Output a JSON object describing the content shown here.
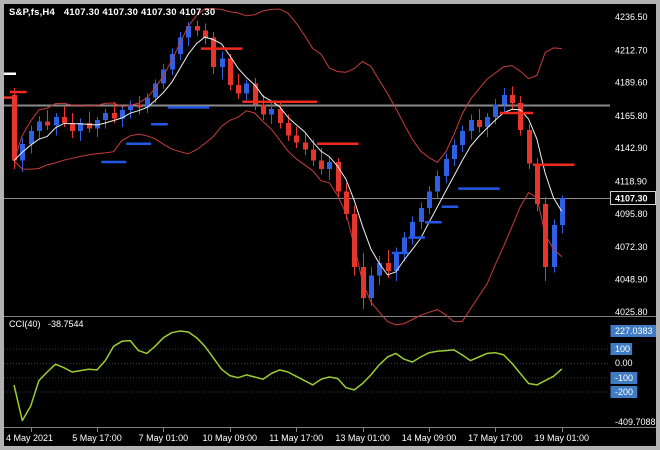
{
  "header": {
    "symbol_period": "S&P,fs,H4",
    "ohlc_text": "4107.30 4107.30 4107.30 4107.30"
  },
  "colors": {
    "frame": "#b2b2b2",
    "background": "#000000",
    "axis_text": "#ffffff",
    "separator": "#7f7f7f",
    "hline": "#8a8a8a",
    "cci_box": "#3f7cc4"
  },
  "chart_data": [
    {
      "type": "candlestick",
      "title": "S&P,fs,H4",
      "timeframe": "H4",
      "ylim": [
        4024.4,
        4244.4
      ],
      "y_ticks": [
        "4236.50",
        "4212.70",
        "4189.60",
        "4165.80",
        "4142.90",
        "4118.90",
        "4095.80",
        "4072.30",
        "4048.90",
        "4025.80"
      ],
      "y_tick_values": [
        4236.5,
        4212.7,
        4189.6,
        4165.8,
        4142.9,
        4118.9,
        4095.8,
        4072.3,
        4048.9,
        4025.8
      ],
      "current_price": 4107.3,
      "current_price_label": "4107.30",
      "x_labels": [
        "4 May 2021",
        "5 May 17:00",
        "7 May 01:00",
        "10 May 09:00",
        "11 May 17:00",
        "13 May 01:00",
        "14 May 09:00",
        "17 May 17:00",
        "19 May 01:00"
      ],
      "x_label_bars": [
        2,
        10,
        18,
        26,
        34,
        42,
        50,
        58,
        66
      ],
      "up_color": "#2f5fe3",
      "down_color": "#e8352b",
      "horizontal_lines": [
        {
          "price": 4174.0,
          "width": 2
        },
        {
          "price": 4107.3,
          "width": 1
        }
      ],
      "left_marks": [
        {
          "price": 4196,
          "color": "#ffffff"
        },
        {
          "price": 4179,
          "color": "#e8352b"
        }
      ],
      "trend_stops": [
        {
          "color": "#f02a1e",
          "segments": [
            [
              0,
              2,
              4183
            ]
          ]
        },
        {
          "color": "#2457e6",
          "segments": [
            [
              11,
              14,
              4133
            ],
            [
              14,
              17,
              4146
            ],
            [
              17,
              19,
              4160
            ],
            [
              19,
              24,
              4172
            ]
          ]
        },
        {
          "color": "#f02a1e",
          "segments": [
            [
              23,
              28,
              4214
            ],
            [
              28,
              37,
              4176
            ],
            [
              37,
              42,
              4146
            ]
          ]
        },
        {
          "color": "#2457e6",
          "segments": [
            [
              46,
              48,
              4068
            ],
            [
              48,
              50,
              4079
            ],
            [
              50,
              52,
              4090
            ],
            [
              52,
              54,
              4101
            ],
            [
              54,
              59,
              4114
            ]
          ]
        },
        {
          "color": "#f02a1e",
          "segments": [
            [
              59,
              63,
              4168
            ],
            [
              63,
              68,
              4131
            ]
          ]
        }
      ],
      "ma": {
        "fast_period": 5,
        "band_period": 13,
        "band_mult": 2.0,
        "mid_color": "#f0f0f0",
        "band_color": "#c83c3c"
      },
      "bars": [
        [
          4181,
          4186,
          4128,
          4134
        ],
        [
          4134,
          4150,
          4126,
          4146
        ],
        [
          4146,
          4159,
          4139,
          4155
        ],
        [
          4155,
          4166,
          4149,
          4162
        ],
        [
          4162,
          4170,
          4156,
          4159
        ],
        [
          4159,
          4168,
          4152,
          4165
        ],
        [
          4165,
          4173,
          4158,
          4161
        ],
        [
          4161,
          4168,
          4150,
          4155
        ],
        [
          4155,
          4164,
          4148,
          4161
        ],
        [
          4161,
          4169,
          4154,
          4157
        ],
        [
          4157,
          4165,
          4151,
          4163
        ],
        [
          4163,
          4171,
          4157,
          4168
        ],
        [
          4168,
          4176,
          4161,
          4164
        ],
        [
          4164,
          4173,
          4158,
          4170
        ],
        [
          4170,
          4177,
          4164,
          4174
        ],
        [
          4174,
          4180,
          4167,
          4172
        ],
        [
          4172,
          4182,
          4168,
          4179
        ],
        [
          4179,
          4192,
          4175,
          4189
        ],
        [
          4189,
          4203,
          4185,
          4199
        ],
        [
          4199,
          4214,
          4195,
          4210
        ],
        [
          4210,
          4226,
          4206,
          4222
        ],
        [
          4222,
          4233,
          4216,
          4230
        ],
        [
          4230,
          4234,
          4223,
          4227
        ],
        [
          4227,
          4232,
          4217,
          4222
        ],
        [
          4222,
          4226,
          4196,
          4201
        ],
        [
          4201,
          4212,
          4192,
          4207
        ],
        [
          4207,
          4210,
          4184,
          4188
        ],
        [
          4188,
          4196,
          4178,
          4182
        ],
        [
          4182,
          4192,
          4176,
          4189
        ],
        [
          4189,
          4193,
          4170,
          4174
        ],
        [
          4174,
          4181,
          4163,
          4167
        ],
        [
          4167,
          4175,
          4160,
          4171
        ],
        [
          4171,
          4176,
          4157,
          4161
        ],
        [
          4161,
          4167,
          4148,
          4152
        ],
        [
          4152,
          4158,
          4143,
          4147
        ],
        [
          4147,
          4154,
          4138,
          4142
        ],
        [
          4142,
          4149,
          4130,
          4134
        ],
        [
          4134,
          4143,
          4124,
          4128
        ],
        [
          4128,
          4137,
          4120,
          4133
        ],
        [
          4133,
          4136,
          4108,
          4112
        ],
        [
          4112,
          4118,
          4092,
          4096
        ],
        [
          4096,
          4102,
          4052,
          4058
        ],
        [
          4058,
          4068,
          4028,
          4036
        ],
        [
          4036,
          4058,
          4030,
          4052
        ],
        [
          4052,
          4066,
          4045,
          4061
        ],
        [
          4061,
          4070,
          4050,
          4055
        ],
        [
          4055,
          4072,
          4048,
          4068
        ],
        [
          4068,
          4083,
          4062,
          4079
        ],
        [
          4079,
          4094,
          4074,
          4090
        ],
        [
          4090,
          4104,
          4085,
          4100
        ],
        [
          4100,
          4116,
          4096,
          4112
        ],
        [
          4112,
          4127,
          4107,
          4123
        ],
        [
          4123,
          4139,
          4118,
          4135
        ],
        [
          4135,
          4149,
          4130,
          4145
        ],
        [
          4145,
          4159,
          4140,
          4155
        ],
        [
          4155,
          4167,
          4149,
          4163
        ],
        [
          4163,
          4171,
          4154,
          4158
        ],
        [
          4158,
          4168,
          4151,
          4165
        ],
        [
          4165,
          4178,
          4160,
          4174
        ],
        [
          4174,
          4186,
          4168,
          4181
        ],
        [
          4181,
          4187,
          4170,
          4175
        ],
        [
          4175,
          4180,
          4152,
          4156
        ],
        [
          4156,
          4160,
          4128,
          4132
        ],
        [
          4132,
          4136,
          4098,
          4103
        ],
        [
          4103,
          4108,
          4048,
          4058
        ],
        [
          4058,
          4092,
          4054,
          4088
        ],
        [
          4088,
          4109,
          4082,
          4107.3
        ]
      ]
    },
    {
      "type": "line",
      "name": "CCI(40)",
      "label": "CCI(40)",
      "current_value": "-38.7544",
      "color": "#9acd32",
      "range": [
        -409.7088,
        227.0383
      ],
      "levels": [
        100,
        0,
        -100,
        -200
      ],
      "y_labels": [
        {
          "text": "227.0383",
          "value": 227.0383,
          "boxed": true
        },
        {
          "text": "100",
          "value": 100,
          "boxed": true
        },
        {
          "text": "0.00",
          "value": 0,
          "boxed": false
        },
        {
          "text": "-100",
          "value": -100,
          "boxed": true
        },
        {
          "text": "-200",
          "value": -200,
          "boxed": true
        },
        {
          "text": "-409.7088",
          "value": -409.7088,
          "boxed": false
        }
      ],
      "values": [
        -150,
        -400,
        -300,
        -120,
        -60,
        -5,
        -30,
        -60,
        -50,
        -40,
        -45,
        20,
        120,
        155,
        160,
        90,
        70,
        120,
        180,
        215,
        227,
        220,
        180,
        120,
        40,
        -40,
        -85,
        -100,
        -80,
        -95,
        -110,
        -70,
        -45,
        -60,
        -90,
        -120,
        -150,
        -110,
        -95,
        -105,
        -170,
        -185,
        -140,
        -80,
        -10,
        45,
        70,
        30,
        10,
        45,
        75,
        85,
        90,
        95,
        60,
        20,
        45,
        70,
        75,
        60,
        0,
        -70,
        -140,
        -150,
        -120,
        -90,
        -38.7544
      ]
    }
  ]
}
